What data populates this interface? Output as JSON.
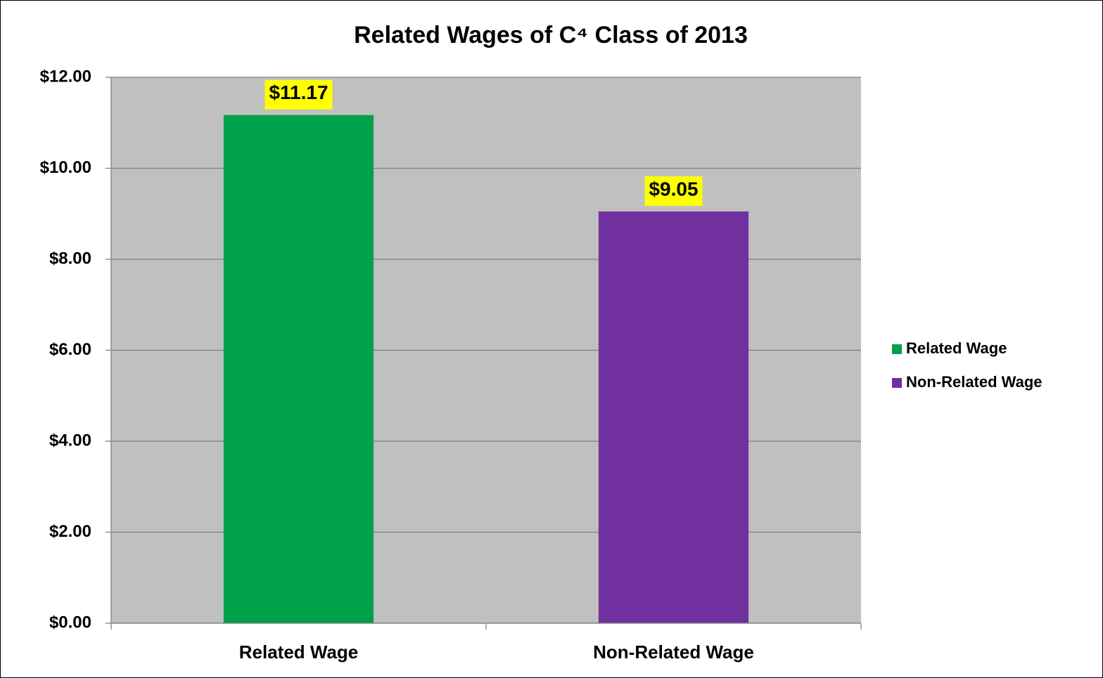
{
  "chart_data": {
    "type": "bar",
    "title": "Related Wages of C⁴ Class of 2013",
    "categories": [
      "Related Wage",
      "Non-Related Wage"
    ],
    "values": [
      11.17,
      9.05
    ],
    "value_labels": [
      "$11.17",
      "$9.05"
    ],
    "colors": [
      "#00a14b",
      "#7030a0"
    ],
    "ylim": [
      0,
      12
    ],
    "yticks": [
      {
        "value": 0,
        "label": "$0.00"
      },
      {
        "value": 2,
        "label": "$2.00"
      },
      {
        "value": 4,
        "label": "$4.00"
      },
      {
        "value": 6,
        "label": "$6.00"
      },
      {
        "value": 8,
        "label": "$8.00"
      },
      {
        "value": 10,
        "label": "$10.00"
      },
      {
        "value": 12,
        "label": "$12.00"
      }
    ],
    "grid": true,
    "legend": "right"
  }
}
